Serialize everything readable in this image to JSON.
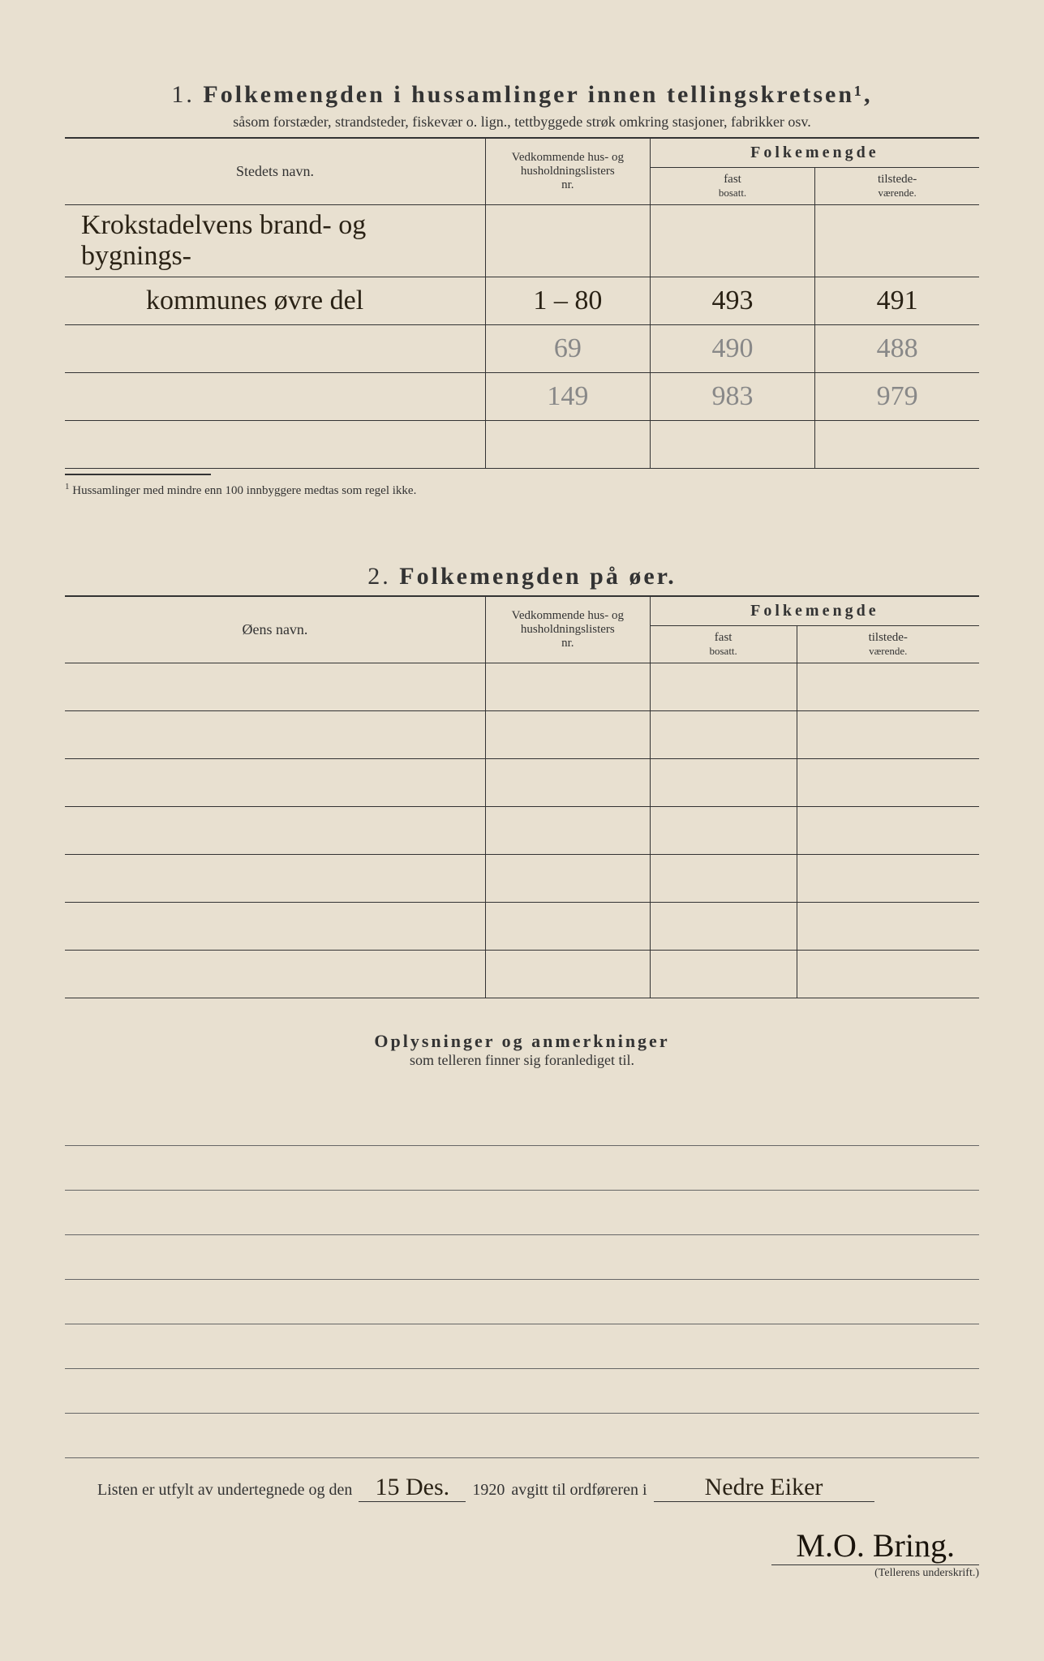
{
  "section1": {
    "number": "1.",
    "title": "Folkemengden i hussamlinger innen tellingskretsen¹,",
    "subtitle": "såsom forstæder, strandsteder, fiskevær o. lign., tettbyggede strøk omkring stasjoner, fabrikker osv.",
    "col_name": "Stedets navn.",
    "col_nr_line1": "Vedkommende hus- og",
    "col_nr_line2": "husholdningslisters",
    "col_nr_line3": "nr.",
    "col_pop": "Folkemengde",
    "col_fast": "fast",
    "col_fast_sub": "bosatt.",
    "col_til": "tilstede-",
    "col_til_sub": "værende.",
    "rows": [
      {
        "name": "Krokstadelvens brand- og bygnings-",
        "nr": "",
        "fast": "",
        "til": ""
      },
      {
        "name": "kommunes øvre del",
        "nr": "1 – 80",
        "fast": "493",
        "til": "491"
      },
      {
        "name": "",
        "nr": "69",
        "fast": "490",
        "til": "488"
      },
      {
        "name": "",
        "nr": "149",
        "fast": "983",
        "til": "979"
      }
    ],
    "footnote_sup": "1",
    "footnote": "Hussamlinger med mindre enn 100 innbyggere medtas som regel ikke."
  },
  "section2": {
    "number": "2.",
    "title": "Folkemengden på øer.",
    "col_name": "Øens navn.",
    "col_nr_line1": "Vedkommende hus- og",
    "col_nr_line2": "husholdningslisters",
    "col_nr_line3": "nr.",
    "col_pop": "Folkemengde",
    "col_fast": "fast",
    "col_fast_sub": "bosatt.",
    "col_til": "tilstede-",
    "col_til_sub": "værende.",
    "empty_rows": 7
  },
  "remarks": {
    "title": "Oplysninger og anmerkninger",
    "subtitle": "som telleren finner sig foranlediget til.",
    "line_count": 8
  },
  "footer": {
    "text_before_date": "Listen er utfylt av undertegnede og den",
    "date": "15 Des.",
    "year": "1920",
    "text_mid": "avgitt til ordføreren i",
    "place": "Nedre Eiker",
    "signature": "M.O. Bring.",
    "sig_label": "(Tellerens underskrift.)"
  },
  "colors": {
    "paper": "#e8e0d0",
    "ink": "#333333",
    "handwriting": "#2a2215",
    "pencil": "#888888"
  }
}
